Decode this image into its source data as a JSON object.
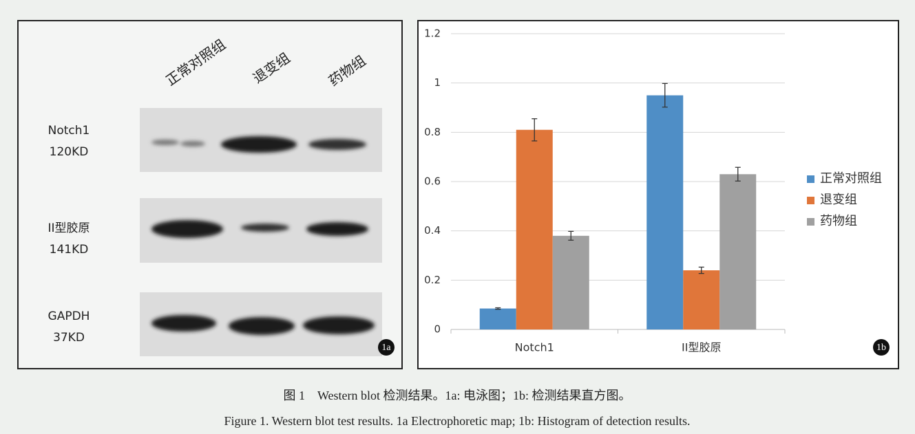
{
  "blot": {
    "lanes": [
      "正常对照组",
      "退变组",
      "药物组"
    ],
    "rows": [
      {
        "name": "Notch1",
        "size": "120KD"
      },
      {
        "name": "II型胶原",
        "size": "141KD"
      },
      {
        "name": "GAPDH",
        "size": "37KD"
      }
    ],
    "tag": "1a"
  },
  "chart_data": {
    "type": "bar",
    "tag": "1b",
    "categories": [
      "Notch1",
      "II型胶原"
    ],
    "series": [
      {
        "name": "正常对照组",
        "color": "#4f8ec6",
        "values": [
          0.085,
          0.95
        ],
        "errors": [
          0.003,
          0.048
        ]
      },
      {
        "name": "退变组",
        "color": "#e0763a",
        "values": [
          0.81,
          0.24
        ],
        "errors": [
          0.045,
          0.013
        ]
      },
      {
        "name": "药物组",
        "color": "#a0a0a0",
        "values": [
          0.38,
          0.63
        ],
        "errors": [
          0.018,
          0.028
        ]
      }
    ],
    "ylim": [
      0,
      1.2
    ],
    "yticks": [
      0,
      0.2,
      0.4,
      0.6,
      0.8,
      1,
      1.2
    ],
    "grid": true,
    "legend": "right"
  },
  "caption": {
    "zh": "图 1　Western blot 检测结果。1a: 电泳图；1b: 检测结果直方图。",
    "en": "Figure 1. Western blot test results. 1a Electrophoretic map; 1b: Histogram of detection results."
  }
}
